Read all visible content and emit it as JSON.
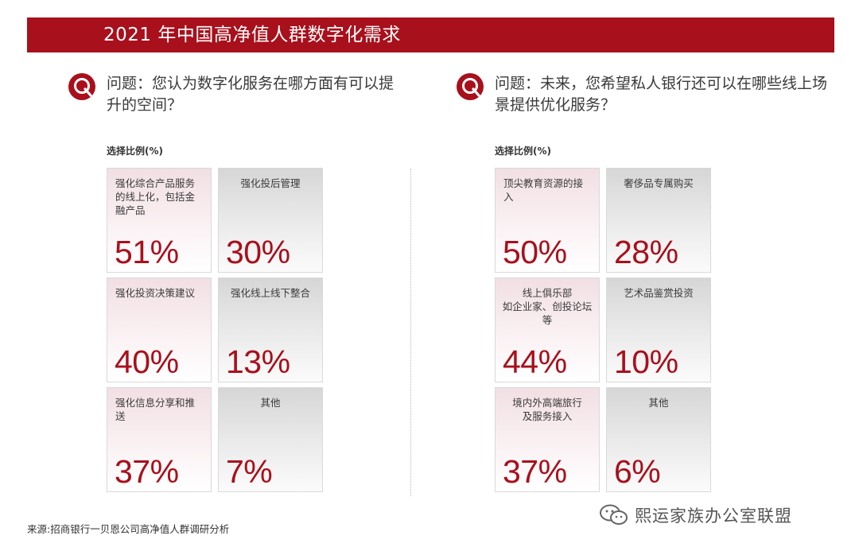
{
  "header": {
    "title": "2021 年中国高净值人群数字化需求"
  },
  "chart_data": [
    {
      "type": "table",
      "question": "问题：您认为数字化服务在哪方面有可以提升的空间？",
      "ratio_label": "选择比例(%)",
      "items": [
        {
          "label": "强化综合产品服务的线上化，包括金融产品",
          "value": "51%"
        },
        {
          "label": "强化投后管理",
          "value": "30%"
        },
        {
          "label": "强化投资决策建议",
          "value": "40%"
        },
        {
          "label": "强化线上线下整合",
          "value": "13%"
        },
        {
          "label": "强化信息分享和推送",
          "value": "37%"
        },
        {
          "label": "其他",
          "value": "7%"
        }
      ]
    },
    {
      "type": "table",
      "question": "问题：未来，您希望私人银行还可以在哪些线上场景提供优化服务？",
      "ratio_label": "选择比例(%)",
      "items": [
        {
          "label": "顶尖教育资源的接入",
          "value": "50%"
        },
        {
          "label": "奢侈品专属购买",
          "value": "28%"
        },
        {
          "label": "线上俱乐部\n如企业家、创投论坛等",
          "value": "44%"
        },
        {
          "label": "艺术品鉴赏投资",
          "value": "10%"
        },
        {
          "label": "境内外高端旅行\n及服务接入",
          "value": "37%"
        },
        {
          "label": "其他",
          "value": "6%"
        }
      ]
    }
  ],
  "footer": {
    "source": "来源:招商银行一贝恩公司高净值人群调研分析",
    "watermark": "熙运家族办公室联盟"
  },
  "colors": {
    "accent": "#a8101c",
    "pink_card": "#f1dfe3",
    "gray_card": "#d6d6d6"
  },
  "icons": {
    "question": "q-icon",
    "watermark": "wechat-icon"
  }
}
